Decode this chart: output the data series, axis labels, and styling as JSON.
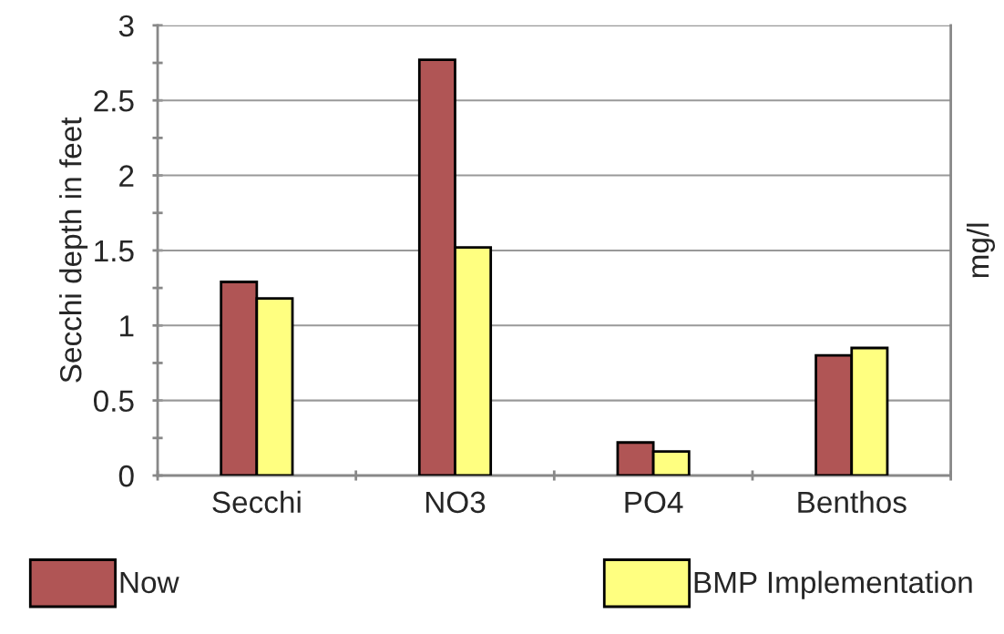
{
  "chart_data": {
    "type": "bar",
    "ylabel": "Secchi depth in feet",
    "y2label": "mg/l",
    "categories": [
      "Secchi",
      "NO3",
      "PO4",
      "Benthos"
    ],
    "series": [
      {
        "name": "Now",
        "color": "#b05555",
        "values": [
          1.29,
          2.77,
          0.22,
          0.8
        ]
      },
      {
        "name": "BMP Implementation",
        "color": "#ffff80",
        "values": [
          1.18,
          1.52,
          0.16,
          0.85
        ]
      }
    ],
    "ylim": [
      0,
      3
    ],
    "yticks": [
      0,
      {
        "value": 0.25,
        "label": null
      },
      0.5,
      {
        "value": 0.75,
        "label": null
      },
      1,
      {
        "value": 1.25,
        "label": null
      },
      1.5,
      {
        "value": 1.75,
        "label": null
      },
      2,
      {
        "value": 2.25,
        "label": null
      },
      2.5,
      {
        "value": 2.75,
        "label": null
      },
      3
    ],
    "grid": "y",
    "legend": "bottom"
  }
}
